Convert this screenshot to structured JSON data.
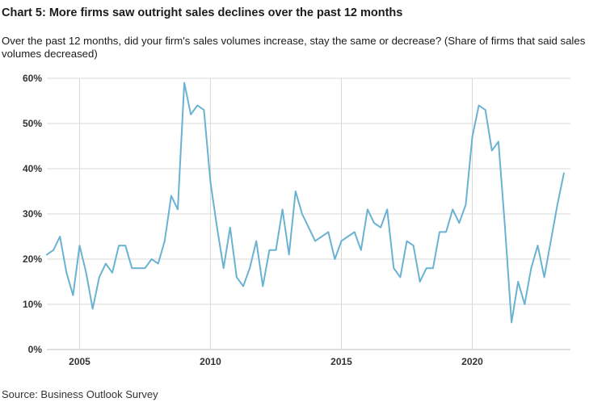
{
  "title": "Chart 5: More firms saw outright sales declines over the past 12 months",
  "subtitle": "Over the past 12 months, did your firm's sales volumes increase, stay the same or decrease? (Share of firms that said sales volumes decreased)",
  "source": "Source: Business Outlook Survey",
  "line_color": "#6ab2d2",
  "grid_color": "#d9d9d9",
  "chart_data": {
    "type": "line",
    "title": "Chart 5: More firms saw outright sales declines over the past 12 months",
    "xlabel": "",
    "ylabel": "",
    "xlim": [
      2003.75,
      2023.75
    ],
    "ylim": [
      0,
      60
    ],
    "x_ticks": [
      2005,
      2010,
      2015,
      2020
    ],
    "y_ticks": [
      0,
      10,
      20,
      30,
      40,
      50,
      60
    ],
    "y_tick_labels": [
      "0%",
      "10%",
      "20%",
      "30%",
      "40%",
      "50%",
      "60%"
    ],
    "grid": true,
    "legend": "none",
    "series": [
      {
        "x": [
          2003.75,
          2004.0,
          2004.25,
          2004.5,
          2004.75,
          2005.0,
          2005.25,
          2005.5,
          2005.75,
          2006.0,
          2006.25,
          2006.5,
          2006.75,
          2007.0,
          2007.25,
          2007.5,
          2007.75,
          2008.0,
          2008.25,
          2008.5,
          2008.75,
          2009.0,
          2009.25,
          2009.5,
          2009.75,
          2010.0,
          2010.25,
          2010.5,
          2010.75,
          2011.0,
          2011.25,
          2011.5,
          2011.75,
          2012.0,
          2012.25,
          2012.5,
          2012.75,
          2013.0,
          2013.25,
          2013.5,
          2013.75,
          2014.0,
          2014.25,
          2014.5,
          2014.75,
          2015.0,
          2015.25,
          2015.5,
          2015.75,
          2016.0,
          2016.25,
          2016.5,
          2016.75,
          2017.0,
          2017.25,
          2017.5,
          2017.75,
          2018.0,
          2018.25,
          2018.5,
          2018.75,
          2019.0,
          2019.25,
          2019.5,
          2019.75,
          2020.0,
          2020.25,
          2020.5,
          2020.75,
          2021.0,
          2021.25,
          2021.5,
          2021.75,
          2022.0,
          2022.25,
          2022.5,
          2022.75,
          2023.0,
          2023.25,
          2023.5
        ],
        "values": [
          21,
          22,
          25,
          17,
          12,
          23,
          17,
          9,
          16,
          19,
          17,
          23,
          23,
          18,
          18,
          18,
          20,
          19,
          24,
          34,
          31,
          59,
          52,
          54,
          53,
          37,
          27,
          18,
          27,
          16,
          14,
          18,
          24,
          14,
          22,
          22,
          31,
          21,
          35,
          30,
          27,
          24,
          25,
          26,
          20,
          24,
          25,
          26,
          22,
          31,
          28,
          27,
          31,
          18,
          16,
          24,
          23,
          15,
          18,
          18,
          26,
          26,
          31,
          28,
          32,
          47,
          54,
          53,
          44,
          46,
          27,
          6,
          15,
          10,
          18,
          23,
          16,
          24,
          32,
          39
        ]
      }
    ]
  }
}
